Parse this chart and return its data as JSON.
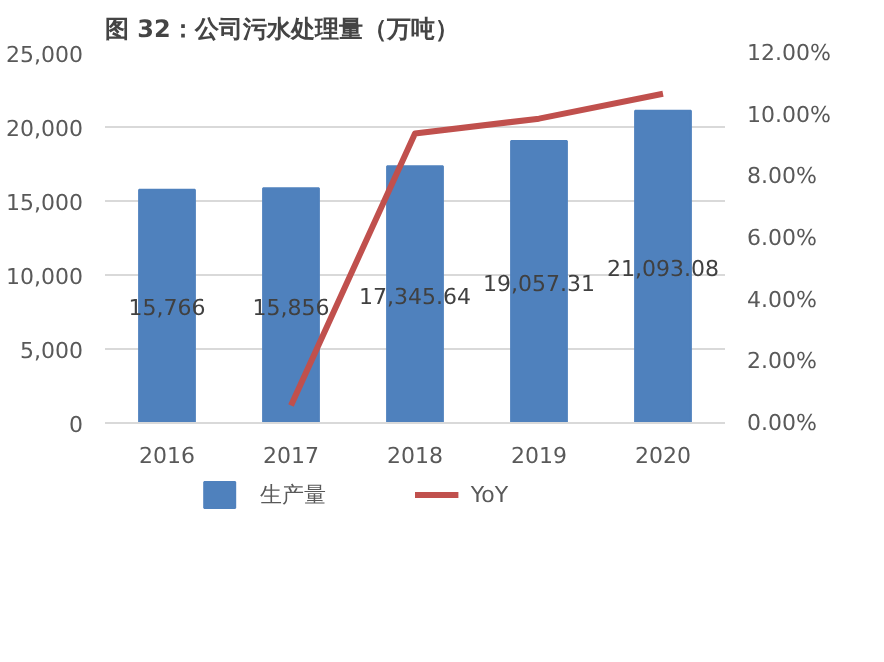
{
  "chart_data": {
    "type": "bar",
    "title": "图 32：公司污水处理量（万吨）",
    "categories": [
      "2016",
      "2017",
      "2018",
      "2019",
      "2020"
    ],
    "series": [
      {
        "name": "生产量",
        "color": "#4f81bd",
        "values": [
          15766,
          15856,
          17345.64,
          19057.31,
          21093.08
        ],
        "value_labels": [
          "15,766",
          "15,856",
          "17,345.64",
          "19,057.31",
          "21,093.08"
        ]
      },
      {
        "name": "YoY",
        "type": "line",
        "axis": "y2",
        "color": "#c0504d",
        "values": [
          null,
          0.57,
          9.39,
          9.87,
          10.68
        ]
      }
    ],
    "ylim": [
      0,
      25000
    ],
    "yticks": [
      {
        "value": 0,
        "label": "0"
      },
      {
        "value": 5000,
        "label": "5,000"
      },
      {
        "value": 10000,
        "label": "10,000"
      },
      {
        "value": 15000,
        "label": "15,000"
      },
      {
        "value": 20000,
        "label": "20,000"
      },
      {
        "value": 25000,
        "label": "25,000"
      }
    ],
    "y2lim": [
      0,
      12
    ],
    "y2ticks": [
      {
        "value": 0,
        "label": "0.00%"
      },
      {
        "value": 2,
        "label": "2.00%"
      },
      {
        "value": 4,
        "label": "4.00%"
      },
      {
        "value": 6,
        "label": "6.00%"
      },
      {
        "value": 8,
        "label": "8.00%"
      },
      {
        "value": 10,
        "label": "10.00%"
      },
      {
        "value": 12,
        "label": "12.00%"
      }
    ],
    "grid": "y",
    "legend": "bottom",
    "marker": "none",
    "line_style": "solid"
  }
}
